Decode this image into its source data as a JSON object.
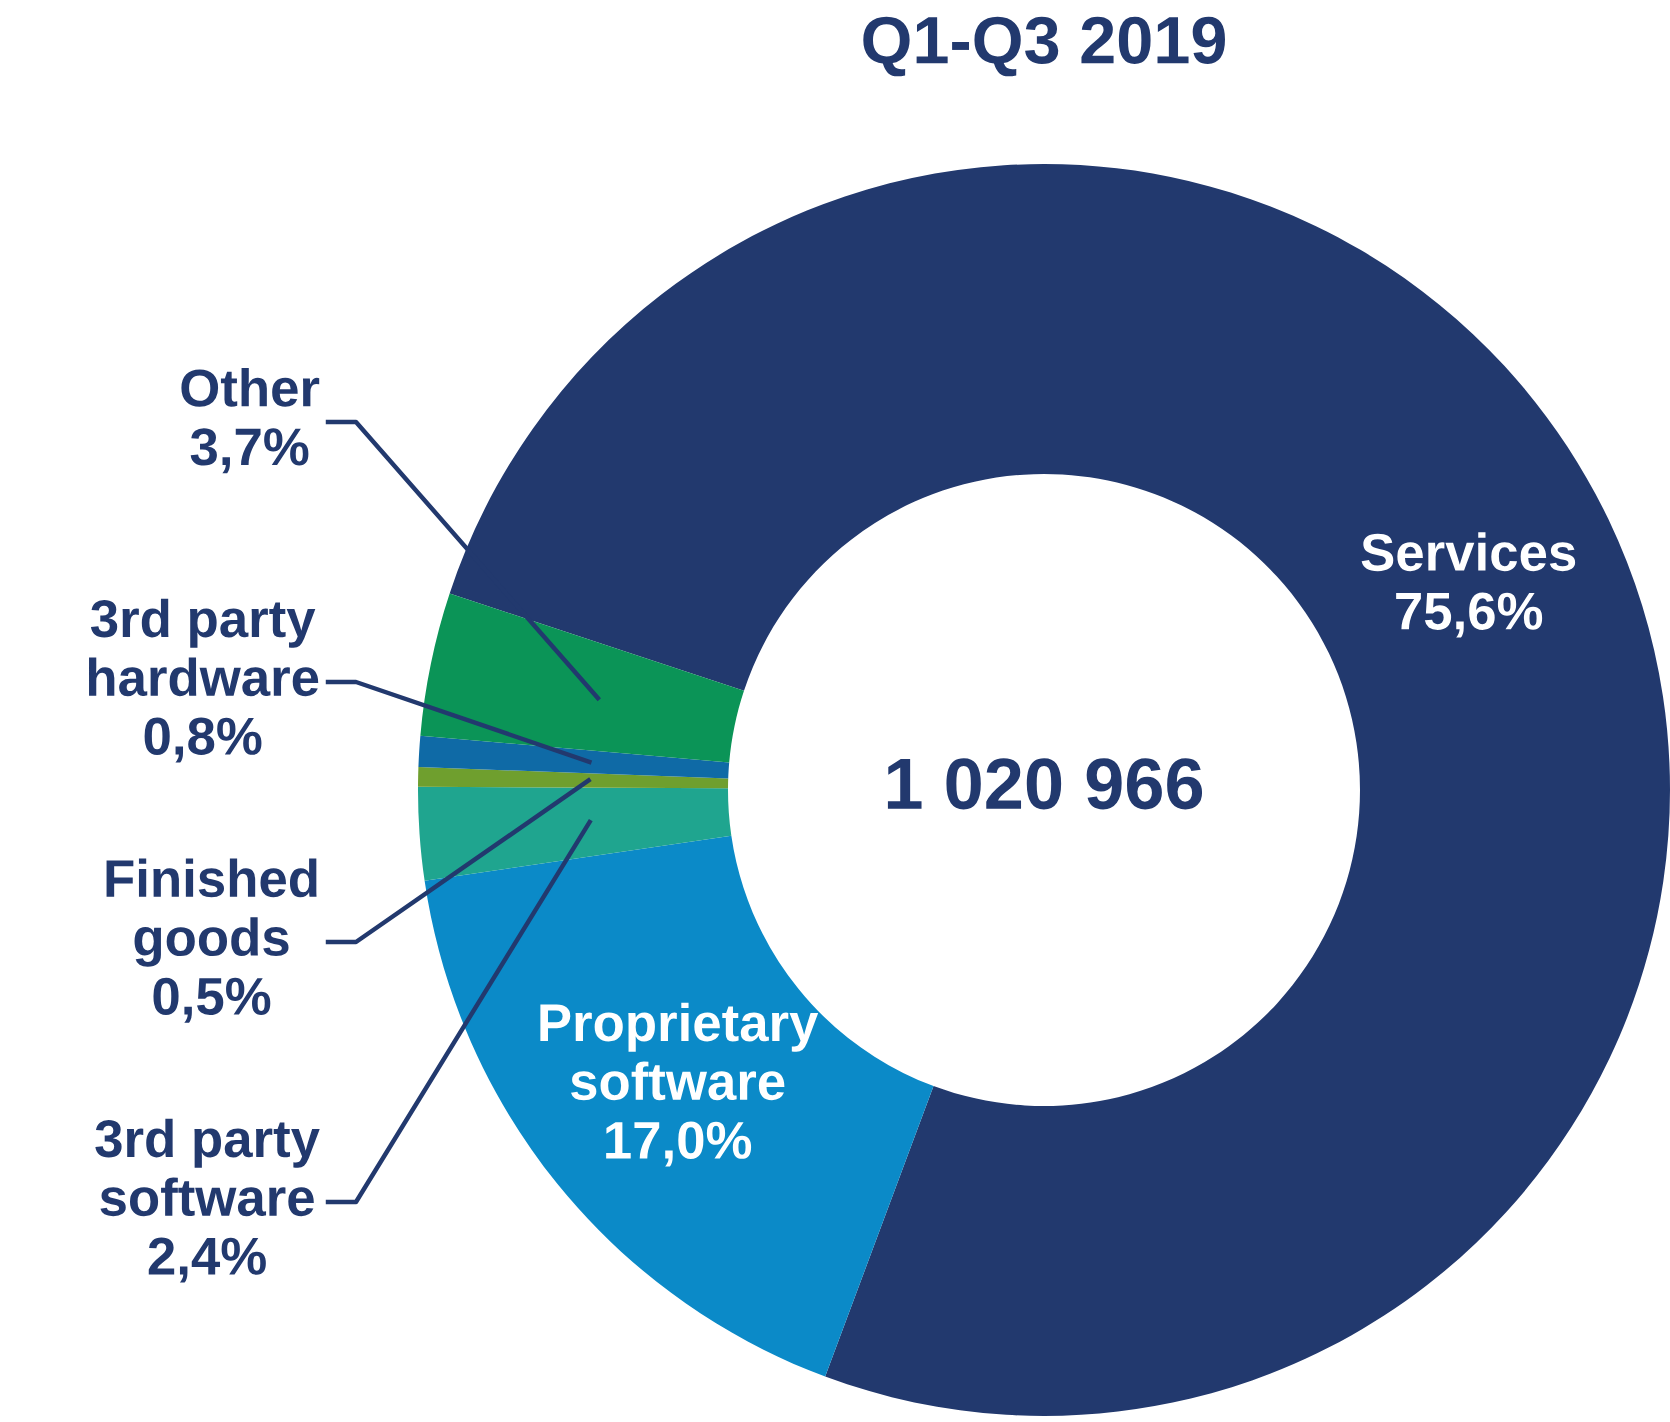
{
  "chart_data": {
    "type": "donut",
    "title": "Q1-Q3 2019",
    "categories": [
      "Services",
      "Proprietary\nsoftware",
      "3rd party\nsoftware",
      "Finished\ngoods",
      "3rd party\nhardware",
      "Other"
    ],
    "values": [
      75.6,
      17.0,
      2.4,
      0.5,
      0.8,
      3.7
    ],
    "value_labels": [
      "75,6%",
      "17,0%",
      "2,4%",
      "0,5%",
      "0,8%",
      "3,7%"
    ],
    "colors": [
      "#22396e",
      "#0b8ac8",
      "#1fa58f",
      "#6f9f2e",
      "#0f6aa6",
      "#0b9457"
    ],
    "annotations": [
      "1 020 966"
    ],
    "legend": false
  }
}
